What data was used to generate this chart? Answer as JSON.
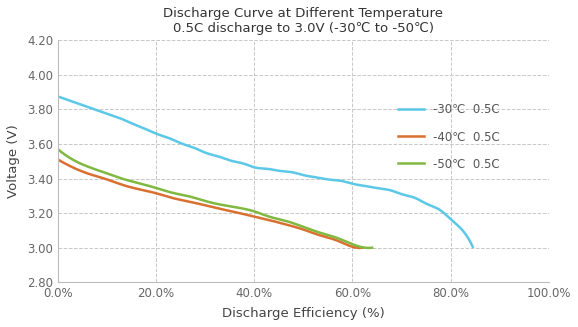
{
  "title_line1": "Discharge Curve at Different Temperature",
  "title_line2": "0.5C discharge to 3.0V (-30℃ to -50℃)",
  "xlabel": "Discharge Efficiency (%)",
  "ylabel": "Voltage (V)",
  "xlim": [
    0.0,
    1.0
  ],
  "ylim": [
    2.8,
    4.2
  ],
  "yticks": [
    2.8,
    3.0,
    3.2,
    3.4,
    3.6,
    3.8,
    4.0,
    4.2
  ],
  "xticks": [
    0.0,
    0.2,
    0.4,
    0.6,
    0.8,
    1.0
  ],
  "background_color": "#ffffff",
  "grid_color": "#c8c8c8",
  "series": [
    {
      "label": "-30℃  0.5C",
      "color": "#5bc8e8",
      "x": [
        0.0,
        0.02,
        0.05,
        0.08,
        0.1,
        0.13,
        0.15,
        0.18,
        0.2,
        0.23,
        0.25,
        0.28,
        0.3,
        0.33,
        0.35,
        0.38,
        0.4,
        0.43,
        0.45,
        0.48,
        0.5,
        0.53,
        0.55,
        0.58,
        0.6,
        0.63,
        0.65,
        0.68,
        0.7,
        0.73,
        0.75,
        0.78,
        0.8,
        0.83,
        0.845
      ],
      "y": [
        3.875,
        3.855,
        3.825,
        3.795,
        3.775,
        3.745,
        3.72,
        3.685,
        3.66,
        3.63,
        3.605,
        3.575,
        3.55,
        3.525,
        3.505,
        3.485,
        3.465,
        3.455,
        3.445,
        3.435,
        3.42,
        3.405,
        3.395,
        3.385,
        3.37,
        3.355,
        3.345,
        3.33,
        3.31,
        3.285,
        3.255,
        3.215,
        3.165,
        3.08,
        3.005
      ]
    },
    {
      "label": "-40℃  0.5C",
      "color": "#d97030",
      "x": [
        0.0,
        0.03,
        0.06,
        0.1,
        0.13,
        0.17,
        0.2,
        0.23,
        0.27,
        0.3,
        0.33,
        0.37,
        0.4,
        0.43,
        0.47,
        0.5,
        0.53,
        0.57,
        0.6,
        0.62
      ],
      "y": [
        3.51,
        3.465,
        3.43,
        3.395,
        3.365,
        3.335,
        3.315,
        3.29,
        3.265,
        3.245,
        3.225,
        3.2,
        3.18,
        3.16,
        3.13,
        3.105,
        3.075,
        3.04,
        3.005,
        3.0
      ]
    },
    {
      "label": "-50℃  0.5C",
      "color": "#80b840",
      "x": [
        0.0,
        0.03,
        0.06,
        0.1,
        0.13,
        0.17,
        0.2,
        0.23,
        0.27,
        0.3,
        0.33,
        0.37,
        0.4,
        0.43,
        0.47,
        0.5,
        0.53,
        0.57,
        0.6,
        0.64
      ],
      "y": [
        3.57,
        3.51,
        3.47,
        3.43,
        3.4,
        3.37,
        3.345,
        3.32,
        3.295,
        3.27,
        3.25,
        3.23,
        3.21,
        3.18,
        3.15,
        3.12,
        3.09,
        3.055,
        3.02,
        3.0
      ]
    }
  ]
}
